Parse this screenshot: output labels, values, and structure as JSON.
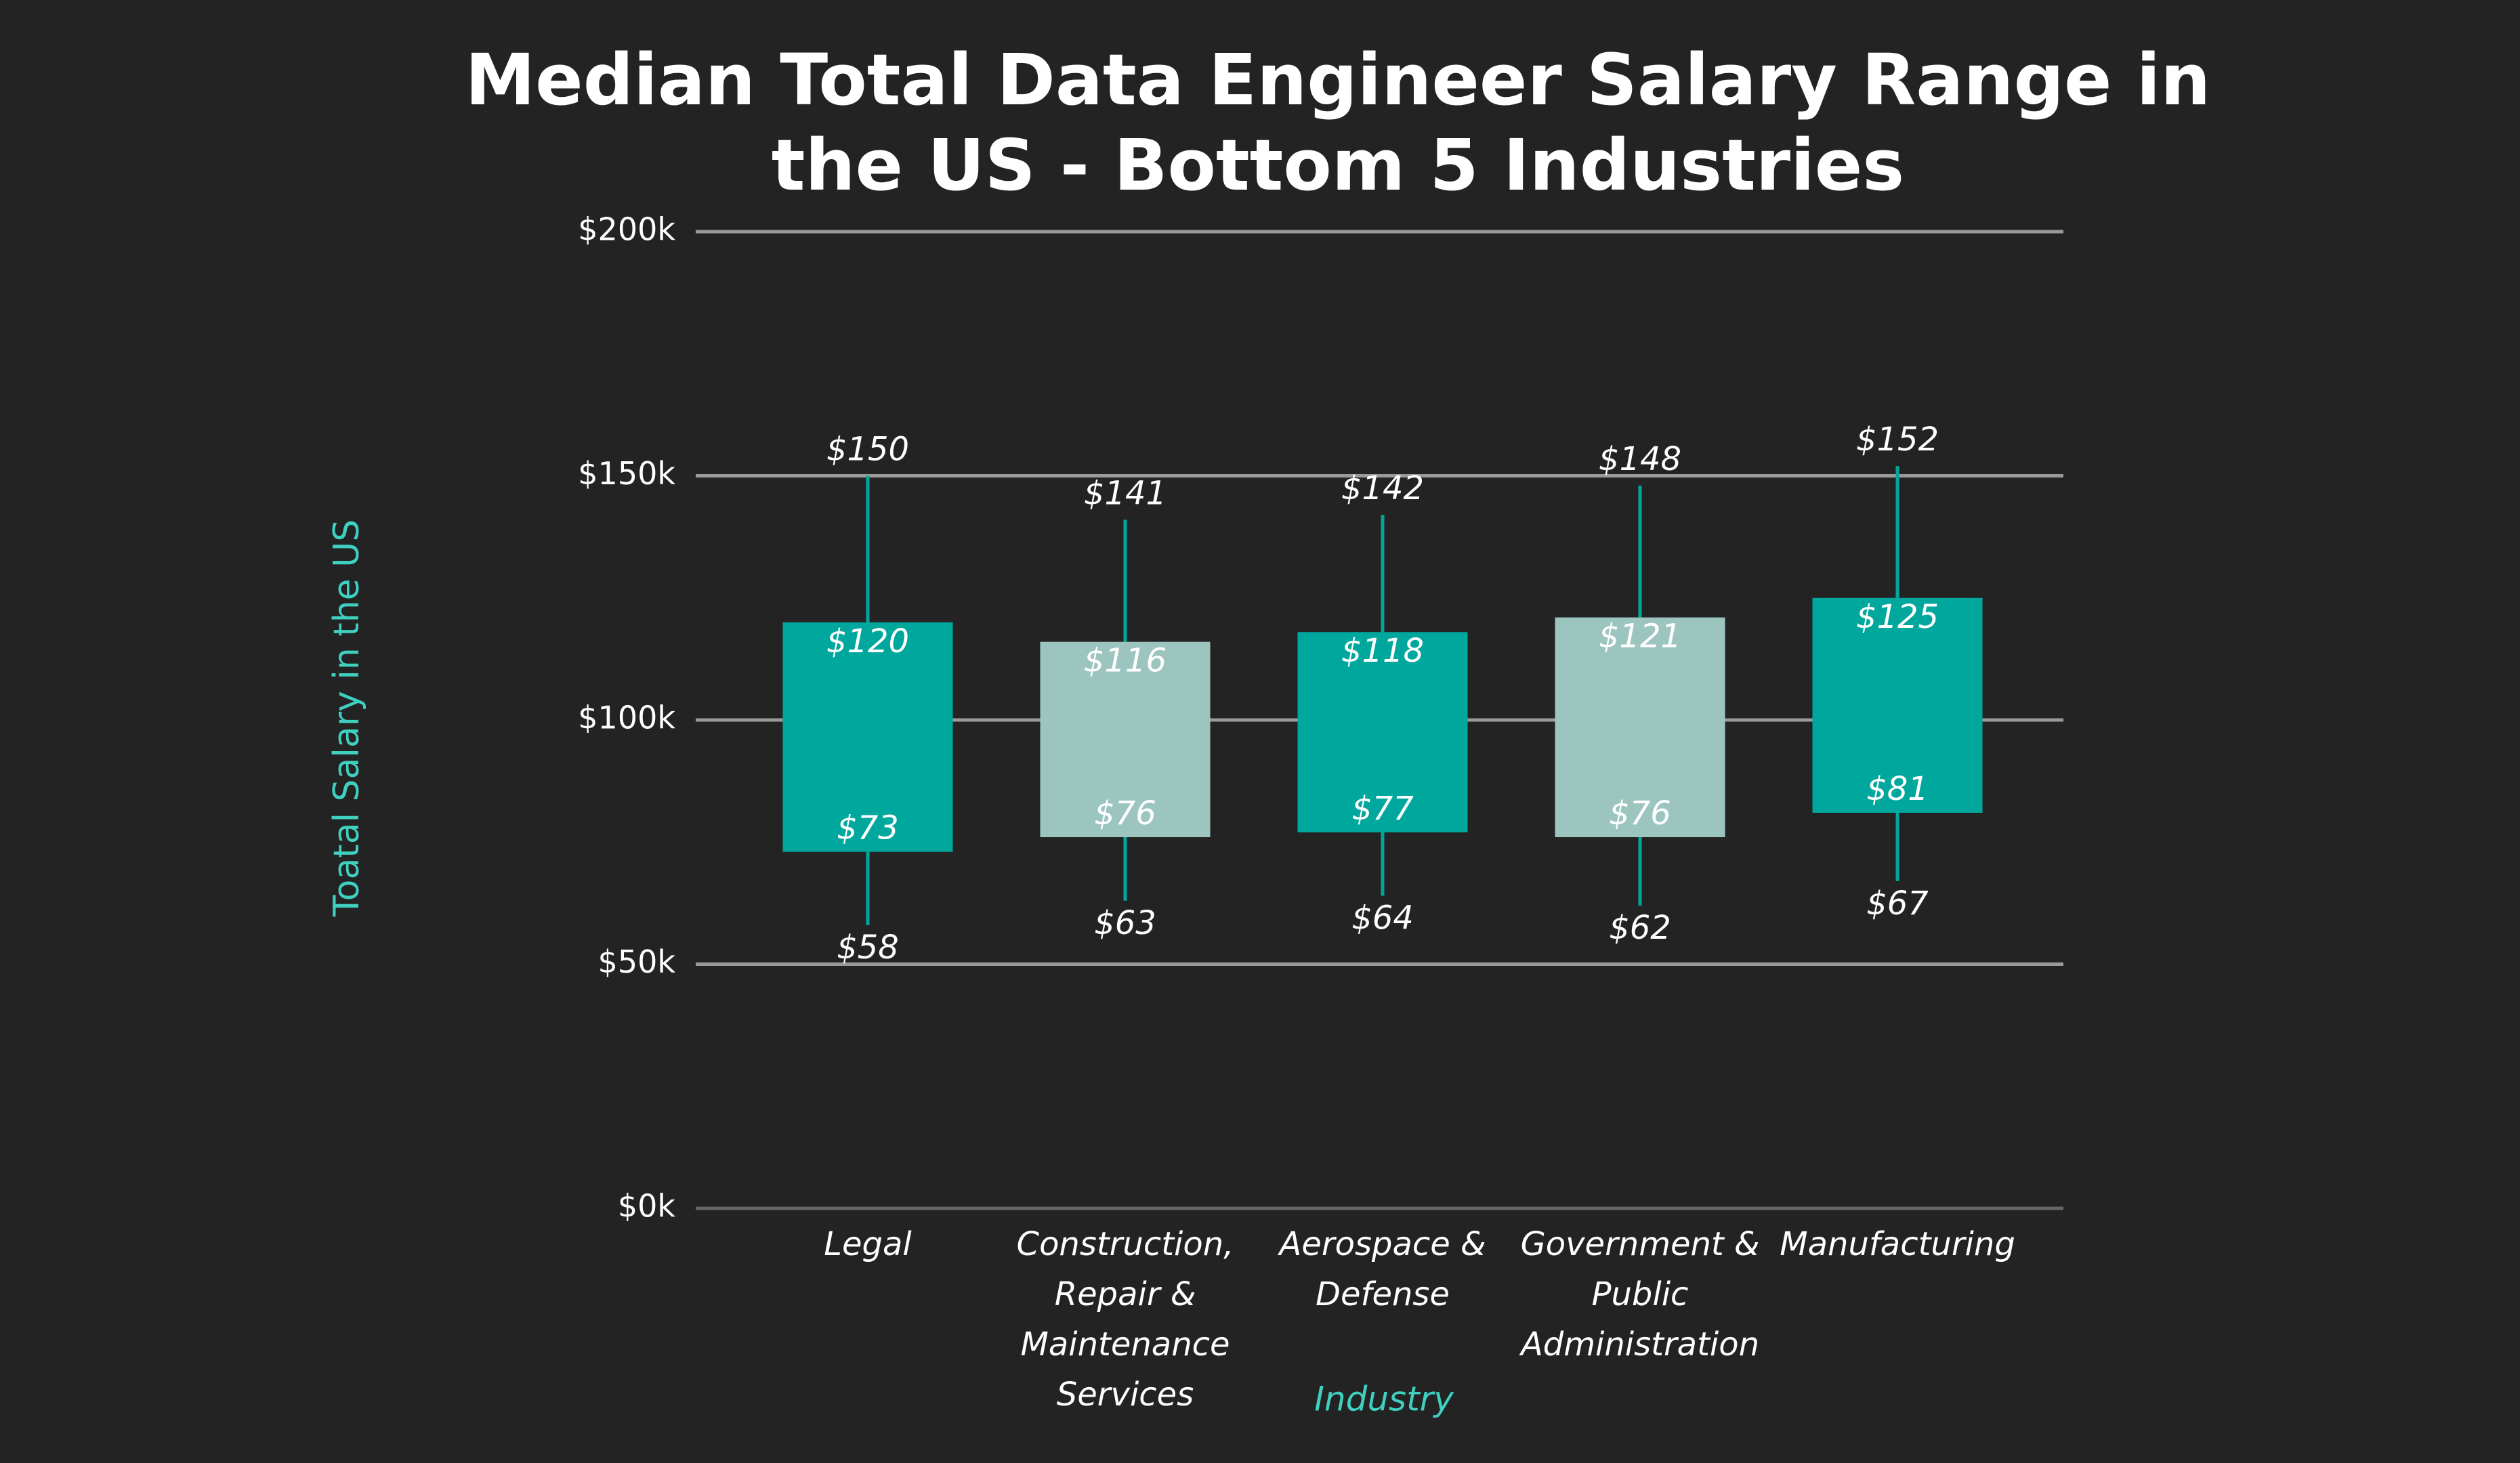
{
  "chart_data": {
    "type": "range-box",
    "title": "Median Total Data Engineer Salary Range in the US -  Bottom 5 Industries",
    "x_label": "Industry",
    "y_label": "Toatal Salary in the US",
    "categories": [
      "Legal",
      "Construction, Repair & Maintenance Services",
      "Aerospace & Defense",
      "Government & Public Administration",
      "Manufacturing"
    ],
    "colors": [
      "#00a79d",
      "#9cc5bf",
      "#00a79d",
      "#9cc5bf",
      "#00a79d"
    ],
    "whisker_color": "#00a79d",
    "series": [
      {
        "name": "Minimum",
        "values": [
          58,
          63,
          64,
          62,
          67
        ],
        "value_labels": [
          "$58",
          "$63",
          "$64",
          "$62",
          "$67"
        ]
      },
      {
        "name": "Box low",
        "values": [
          73,
          76,
          77,
          76,
          81
        ],
        "value_labels": [
          "$73",
          "$76",
          "$77",
          "$76",
          "$81"
        ]
      },
      {
        "name": "Box high",
        "values": [
          120,
          116,
          118,
          121,
          125
        ],
        "value_labels": [
          "$120",
          "$116",
          "$118",
          "$121",
          "$125"
        ]
      },
      {
        "name": "Maximum",
        "values": [
          150,
          141,
          142,
          148,
          152
        ],
        "value_labels": [
          "$150",
          "$141",
          "$142",
          "$148",
          "$152"
        ]
      }
    ],
    "ylim": [
      0,
      200
    ],
    "yticks": [
      {
        "value": 0,
        "label": "$0k"
      },
      {
        "value": 50,
        "label": "$50k"
      },
      {
        "value": 100,
        "label": "$100k"
      },
      {
        "value": 150,
        "label": "$150k"
      },
      {
        "value": 200,
        "label": "$200k"
      }
    ],
    "grid": true
  }
}
